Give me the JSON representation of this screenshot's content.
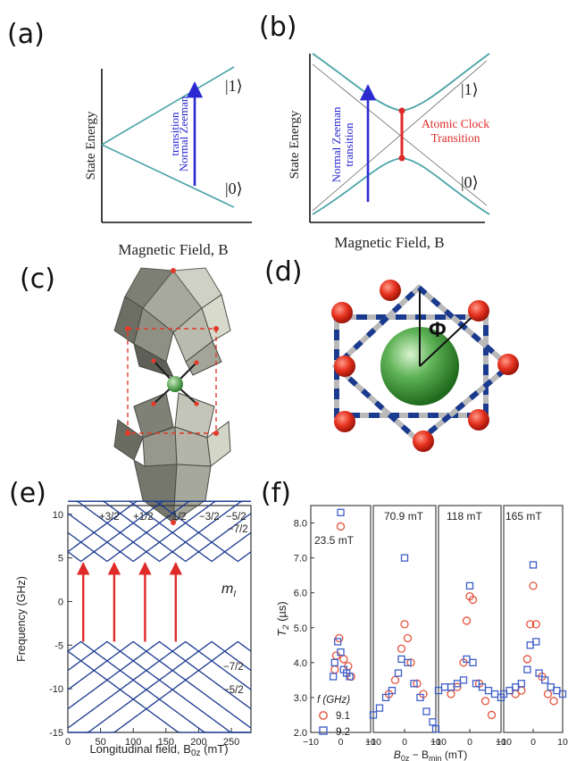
{
  "panels": {
    "a": {
      "label": "(a)",
      "ylabel": "State Energy",
      "xlabel": "Magnetic Field, B",
      "state_upper": "|1⟩",
      "state_lower": "|0⟩",
      "transition_line1": "Normal Zeeman",
      "transition_line2": "transition"
    },
    "b": {
      "label": "(b)",
      "ylabel": "State Energy",
      "xlabel": "Magnetic Field, B",
      "state_upper": "|1⟩",
      "state_lower": "|0⟩",
      "transition_line1": "Normal Zeeman",
      "transition_line2": "transition",
      "clock_line1": "Atomic Clock",
      "clock_line2": "Transition"
    },
    "c": {
      "label": "(c)"
    },
    "d": {
      "label": "(d)",
      "angle_symbol": "Φ"
    },
    "e": {
      "label": "(e)",
      "ylabel": "Frequency (GHz)",
      "xlabel": "Longitudinal field, B",
      "xlabel_sub": "0z",
      "xlabel_unit": " (mT)",
      "m_label": "m",
      "m_sub": "I",
      "top_labels": [
        "+3/2",
        "+1/2",
        "−1/2",
        "−3/2",
        "−5/2"
      ],
      "side_labels": [
        "−7/2",
        "−7/2",
        "−5/2"
      ]
    },
    "f": {
      "label": "(f)",
      "ylabel": "T",
      "ylabel_sub": "2",
      "ylabel_unit": " (µs)",
      "xlabel": "B",
      "xlabel_sub1": "0z",
      "xlabel_mid": " − B",
      "xlabel_sub2": "min",
      "xlabel_unit": " (mT)",
      "legend_title": "f (GHz)",
      "legend": [
        "9.1",
        "9.2"
      ],
      "subpanels": [
        "23.5 mT",
        "70.9 mT",
        "118 mT",
        "165 mT"
      ]
    }
  },
  "colors": {
    "curve": "#4aa3a8",
    "blue_arrow": "#2a2ad0",
    "red": "#e02a2a",
    "navy": "#1a3a8f",
    "series_red": "#e5533d",
    "series_blue": "#3f5fc8"
  },
  "chart_data": [
    {
      "type": "line",
      "ylim": [
        -15,
        11
      ],
      "xlim": [
        0,
        280
      ],
      "yticks": [
        10,
        5,
        0,
        -5,
        -10,
        -15
      ],
      "xticks": [
        0,
        50,
        100,
        150,
        200,
        250
      ],
      "arrows_at_field_mT": [
        23.5,
        70.9,
        118,
        165
      ],
      "arrow_from_GHz": -4.6,
      "arrow_to_GHz": 4.6
    },
    {
      "type": "scatter",
      "ylim": [
        2.0,
        8.5
      ],
      "xlim": [
        -10,
        10
      ],
      "yticks": [
        2.0,
        3.0,
        4.0,
        5.0,
        6.0,
        7.0,
        8.0
      ],
      "xticks": [
        -10,
        0,
        10
      ],
      "series": [
        {
          "name": "9.1",
          "subpanels": [
            [
              [
                0,
                7.9
              ],
              [
                -1.5,
                4.2
              ],
              [
                -0.5,
                4.7
              ],
              [
                1,
                4.1
              ],
              [
                -2,
                3.8
              ],
              [
                2.5,
                3.9
              ],
              [
                3.5,
                3.6
              ]
            ],
            [
              [
                -5,
                3.1
              ],
              [
                -3,
                3.5
              ],
              [
                -1,
                4.4
              ],
              [
                0,
                5.1
              ],
              [
                1,
                4.7
              ],
              [
                2,
                4.0
              ],
              [
                4,
                3.4
              ],
              [
                6,
                3.1
              ]
            ],
            [
              [
                -6,
                3.1
              ],
              [
                -4,
                3.3
              ],
              [
                -2,
                4.0
              ],
              [
                -1,
                5.2
              ],
              [
                0,
                5.9
              ],
              [
                1,
                5.8
              ],
              [
                3,
                3.4
              ],
              [
                5,
                2.9
              ],
              [
                7,
                2.5
              ]
            ],
            [
              [
                -6,
                3.1
              ],
              [
                -4,
                3.2
              ],
              [
                -2,
                4.1
              ],
              [
                -1,
                5.1
              ],
              [
                0,
                6.2
              ],
              [
                1,
                5.1
              ],
              [
                3,
                3.6
              ],
              [
                5,
                3.1
              ],
              [
                7,
                2.9
              ]
            ]
          ]
        },
        {
          "name": "9.2",
          "subpanels": [
            [
              [
                0,
                8.3
              ],
              [
                -2,
                4.0
              ],
              [
                -1,
                4.6
              ],
              [
                0,
                4.3
              ],
              [
                1,
                3.8
              ],
              [
                2,
                3.7
              ],
              [
                3,
                3.6
              ],
              [
                -2.5,
                3.6
              ]
            ],
            [
              [
                -10,
                2.5
              ],
              [
                -8,
                2.7
              ],
              [
                -6,
                3.0
              ],
              [
                -4,
                3.2
              ],
              [
                -2,
                3.7
              ],
              [
                -1,
                4.1
              ],
              [
                0,
                7.0
              ],
              [
                1,
                4.0
              ],
              [
                3,
                3.4
              ],
              [
                5,
                3.0
              ],
              [
                7,
                2.6
              ],
              [
                9,
                2.3
              ],
              [
                10,
                2.1
              ]
            ],
            [
              [
                -10,
                3.2
              ],
              [
                -8,
                3.3
              ],
              [
                -6,
                3.3
              ],
              [
                -4,
                3.4
              ],
              [
                -2,
                3.5
              ],
              [
                -1,
                4.1
              ],
              [
                0,
                6.2
              ],
              [
                1,
                4.0
              ],
              [
                2,
                3.4
              ],
              [
                4,
                3.3
              ],
              [
                6,
                3.2
              ],
              [
                8,
                3.1
              ],
              [
                10,
                3.0
              ]
            ],
            [
              [
                -10,
                3.1
              ],
              [
                -8,
                3.2
              ],
              [
                -6,
                3.3
              ],
              [
                -4,
                3.4
              ],
              [
                -2,
                3.8
              ],
              [
                -1,
                4.5
              ],
              [
                0,
                6.8
              ],
              [
                1,
                4.6
              ],
              [
                2,
                3.7
              ],
              [
                4,
                3.5
              ],
              [
                6,
                3.3
              ],
              [
                8,
                3.2
              ],
              [
                10,
                3.1
              ]
            ]
          ]
        }
      ]
    }
  ]
}
